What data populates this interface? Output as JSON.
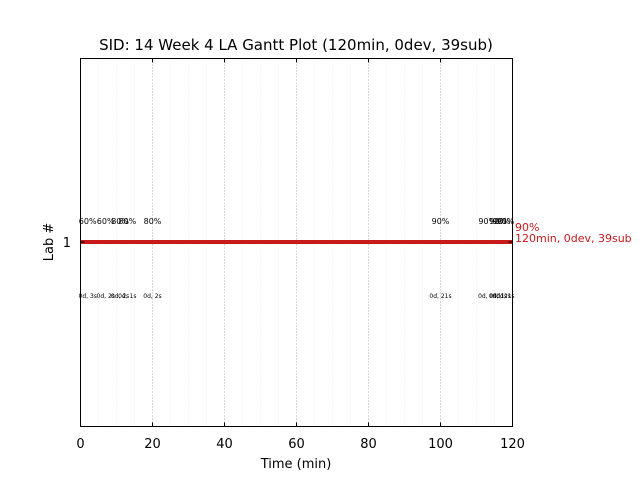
{
  "chart_data": {
    "type": "gantt",
    "title": "SID: 14 Week 4 LA Gantt Plot (120min, 0dev, 39sub)",
    "xlabel": "Time (min)",
    "ylabel": "Lab #",
    "xlim": [
      0,
      120
    ],
    "xticks": [
      "0",
      "20",
      "40",
      "60",
      "80",
      "100",
      "120"
    ],
    "yticks": [
      "1"
    ],
    "grid": {
      "major_every": 20,
      "minor_every": 5
    },
    "bar": {
      "lab": 1,
      "start": 0,
      "end": 120,
      "color": "#c8191b"
    },
    "end_label": {
      "line1": "90%",
      "line2": "120min, 0dev, 39sub",
      "color": "#c8191b"
    },
    "events": [
      {
        "x": 2,
        "pct": "60%",
        "time": "0d, 3s"
      },
      {
        "x": 7,
        "pct": "60%",
        "time": "0d, 2s"
      },
      {
        "x": 11,
        "pct": "80%",
        "time": "0d, 2s"
      },
      {
        "x": 13,
        "pct": "80%",
        "time": "0d, 1s"
      },
      {
        "x": 20,
        "pct": "80%",
        "time": "0d, 2s"
      },
      {
        "x": 100,
        "pct": "90%",
        "time": "0d, 21s"
      },
      {
        "x": 113,
        "pct": "90%",
        "time": "0d, 0s"
      },
      {
        "x": 116,
        "pct": "90%",
        "time": "0d, 1s"
      },
      {
        "x": 117,
        "pct": "90%",
        "time": "0d, 2s"
      },
      {
        "x": 118,
        "pct": "90%",
        "time": "0d, 1s"
      }
    ]
  }
}
